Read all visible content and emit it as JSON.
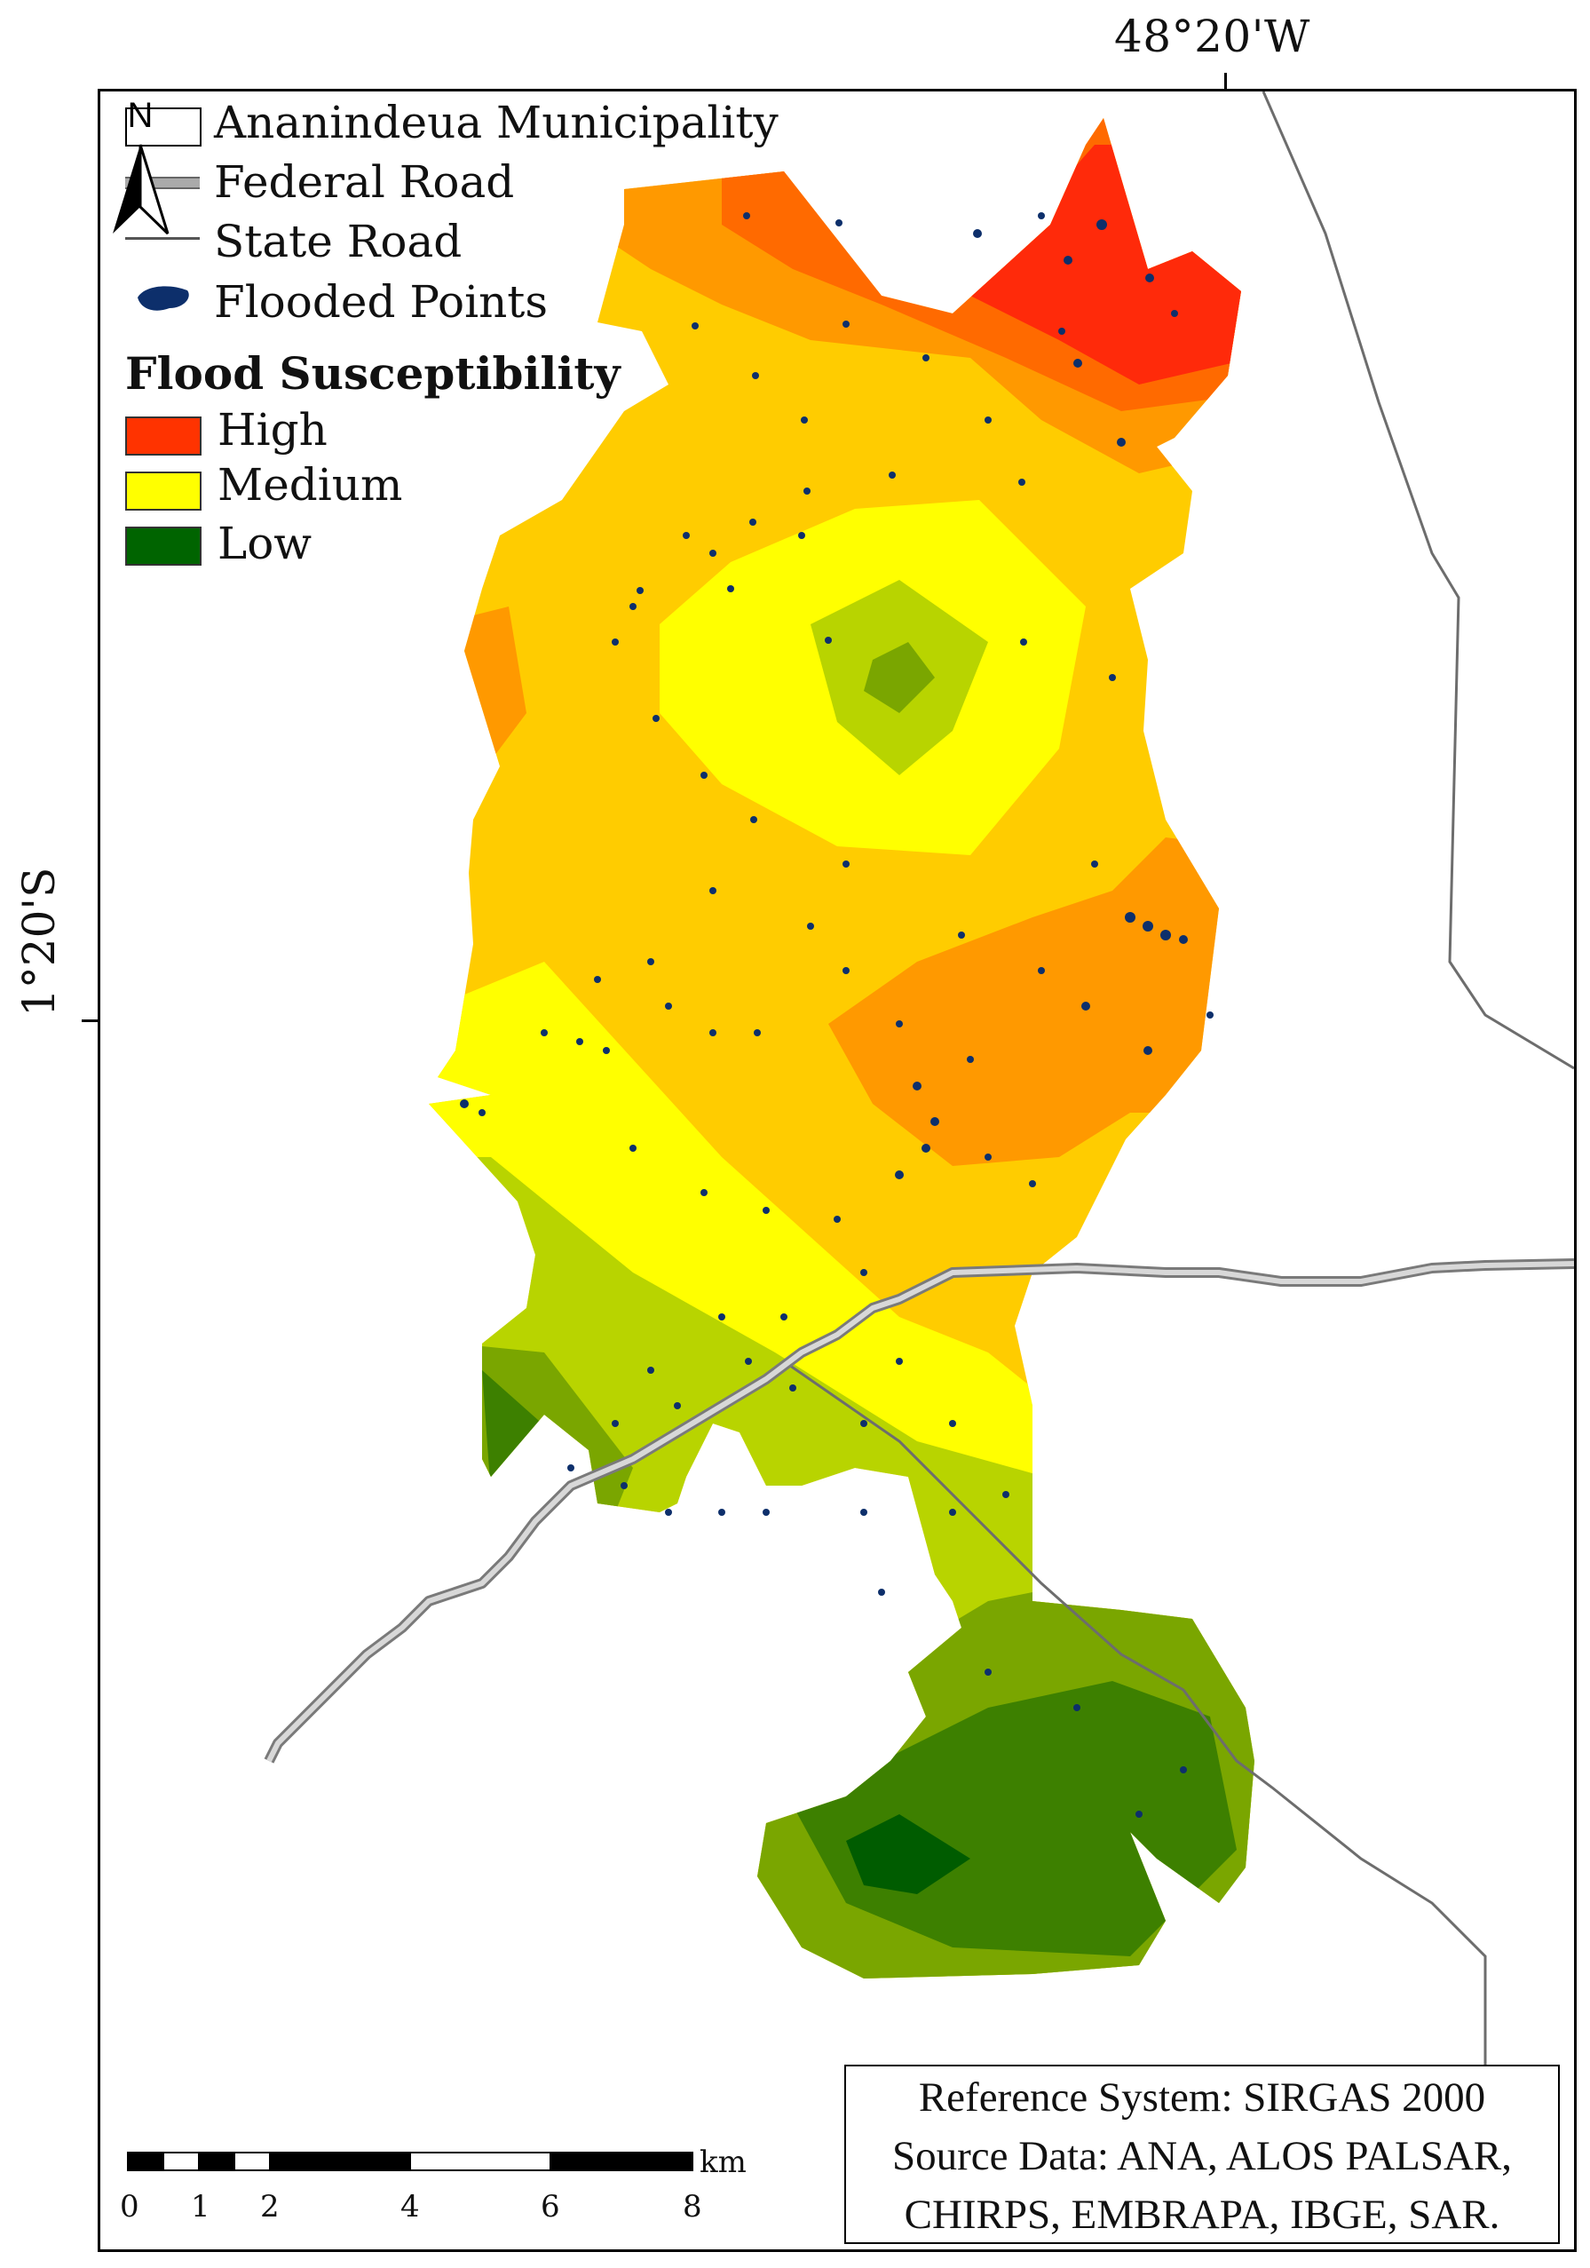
{
  "coordinates": {
    "longitude_label": "48°20'W",
    "latitude_label": "1°20'S"
  },
  "legend": {
    "municipality": "Ananindeua Municipality",
    "federal_road": "Federal Road",
    "state_road": "State Road",
    "flooded_points": "Flooded Points",
    "title": "Flood Susceptibility",
    "classes": [
      {
        "label": "High",
        "color": "#ff3300"
      },
      {
        "label": "Medium",
        "color": "#ffff00"
      },
      {
        "label": "Low",
        "color": "#006400"
      }
    ]
  },
  "north_arrow": {
    "label": "N"
  },
  "scale_bar": {
    "unit": "km",
    "ticks": [
      "0",
      "1",
      "2",
      "4",
      "6",
      "8"
    ]
  },
  "info": {
    "line1": "Reference System: SIRGAS 2000",
    "line2": "Source Data: ANA, ALOS PALSAR,",
    "line3": "CHIRPS, EMBRAPA, IBGE, SAR."
  },
  "colors": {
    "high": "#ff2a0a",
    "high_mid": "#ff6a00",
    "mid_high": "#ff9900",
    "mid_high2": "#ffcc00",
    "medium": "#ffff00",
    "mid_low": "#b8d400",
    "low_mid": "#7aa600",
    "low": "#3d8000",
    "lowest": "#005c00",
    "flood_points": "#0d2f6b",
    "federal_road": "#a8a8a8",
    "state_road": "#6d6d6d"
  }
}
